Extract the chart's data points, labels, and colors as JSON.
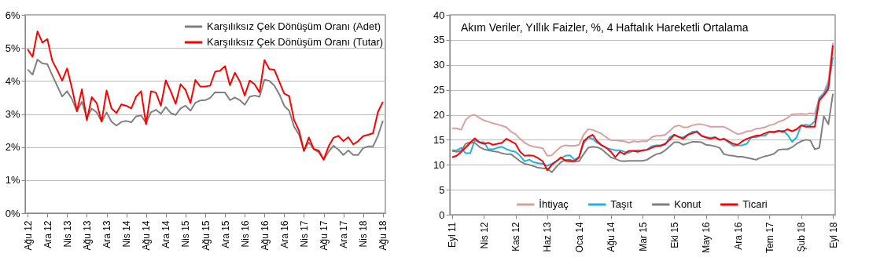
{
  "chart_data": [
    {
      "type": "line",
      "categories": [
        "Ağu 12",
        null,
        null,
        null,
        "Ara 12",
        null,
        null,
        null,
        "Nis 13",
        null,
        null,
        null,
        "Ağu 13",
        null,
        null,
        null,
        "Ara 13",
        null,
        null,
        null,
        "Nis 14",
        null,
        null,
        null,
        "Ağu 14",
        null,
        null,
        null,
        "Ara 14",
        null,
        null,
        null,
        "Nis 15",
        null,
        null,
        null,
        "Ağu 15",
        null,
        null,
        null,
        "Ara 15",
        null,
        null,
        null,
        "Nis 16",
        null,
        null,
        null,
        "Ağu 16",
        null,
        null,
        null,
        "Ara 16",
        null,
        null,
        null,
        "Nis 17",
        null,
        null,
        null,
        "Ağu 17",
        null,
        null,
        null,
        "Ara 17",
        null,
        null,
        null,
        "Nis 18",
        null,
        null,
        null,
        "Ağu 18"
      ],
      "series": [
        {
          "name": "Karşılıksız Çek Dönüşüm Oranı (Adet)",
          "color": "#808080",
          "values": [
            4.35,
            4.19,
            4.65,
            4.53,
            4.51,
            4.17,
            3.85,
            3.53,
            3.69,
            3.45,
            3.08,
            3.37,
            2.89,
            3.16,
            3.05,
            2.77,
            3.05,
            2.77,
            2.65,
            2.76,
            2.79,
            2.75,
            2.93,
            2.96,
            2.73,
            3.05,
            3.13,
            3.01,
            3.21,
            3.03,
            2.97,
            3.17,
            3.25,
            3.1,
            3.34,
            3.41,
            3.42,
            3.49,
            3.66,
            3.65,
            3.65,
            3.42,
            3.5,
            3.42,
            3.28,
            3.52,
            3.56,
            3.52,
            4.04,
            4.0,
            3.86,
            3.6,
            3.25,
            3.1,
            2.62,
            2.38,
            1.9,
            2.14,
            1.94,
            1.84,
            1.62,
            1.86,
            2.04,
            1.92,
            1.76,
            1.9,
            1.76,
            1.76,
            1.97,
            2.02,
            2.02,
            2.34,
            2.8
          ]
        },
        {
          "name": "Karşılıksız Çek Dönüşüm Oranı (Tutar)",
          "color": "#ff0000",
          "values": [
            4.96,
            4.73,
            5.5,
            5.16,
            5.27,
            4.61,
            4.33,
            4.01,
            4.38,
            3.77,
            3.09,
            3.75,
            2.81,
            3.51,
            3.33,
            2.77,
            3.71,
            3.17,
            3.03,
            3.29,
            3.25,
            3.17,
            3.53,
            3.69,
            2.69,
            3.69,
            3.65,
            3.25,
            4.02,
            3.69,
            3.31,
            3.9,
            3.73,
            3.33,
            4.03,
            3.83,
            3.83,
            3.86,
            4.28,
            4.31,
            4.45,
            3.87,
            4.25,
            3.99,
            3.56,
            4.01,
            3.9,
            3.66,
            4.63,
            4.36,
            4.34,
            3.98,
            3.62,
            3.54,
            2.82,
            2.5,
            1.88,
            2.29,
            1.94,
            1.89,
            1.62,
            2.02,
            2.28,
            2.34,
            2.18,
            2.3,
            2.08,
            2.18,
            2.33,
            2.37,
            2.42,
            3.06,
            3.37
          ]
        }
      ],
      "ylim": [
        0,
        6
      ],
      "yticks": [
        {
          "value": 0,
          "label": "0%"
        },
        {
          "value": 1,
          "label": "1%"
        },
        {
          "value": 2,
          "label": "2%"
        },
        {
          "value": 3,
          "label": "3%"
        },
        {
          "value": 4,
          "label": "4%"
        },
        {
          "value": 5,
          "label": "5%"
        },
        {
          "value": 6,
          "label": "6%"
        }
      ],
      "grid": "y",
      "legend": "top right",
      "line_style": "solid"
    },
    {
      "type": "line",
      "title": "Akım Veriler, Yıllık Faizler, %, 4 Haftalık Hareketli Ortalama",
      "categories": [
        "Eyl 11",
        null,
        null,
        null,
        null,
        null,
        null,
        "Nis 12",
        null,
        null,
        null,
        null,
        null,
        null,
        "Kas 12",
        null,
        null,
        null,
        null,
        null,
        null,
        "Haz 13",
        null,
        null,
        null,
        null,
        null,
        null,
        "Oca 14",
        null,
        null,
        null,
        null,
        null,
        null,
        "Ağu 14",
        null,
        null,
        null,
        null,
        null,
        null,
        "Mar 15",
        null,
        null,
        null,
        null,
        null,
        null,
        "Eki 15",
        null,
        null,
        null,
        null,
        null,
        null,
        "May 16",
        null,
        null,
        null,
        null,
        null,
        null,
        "Ara 16",
        null,
        null,
        null,
        null,
        null,
        null,
        "Tem 17",
        null,
        null,
        null,
        null,
        null,
        null,
        "Şub 18",
        null,
        null,
        null,
        null,
        null,
        null,
        "Eyl 18"
      ],
      "series": [
        {
          "name": "İhtiyaç",
          "color": "#d9a09e",
          "values": [
            17.3,
            17.3,
            17.0,
            19.0,
            19.8,
            20.0,
            19.4,
            18.9,
            18.6,
            18.3,
            18.1,
            17.8,
            17.5,
            16.6,
            16.1,
            15.2,
            14.4,
            13.9,
            13.6,
            13.5,
            13.3,
            11.8,
            11.9,
            12.8,
            13.6,
            13.9,
            13.8,
            13.8,
            14.0,
            16.0,
            17.1,
            17.0,
            16.6,
            16.2,
            15.5,
            14.9,
            14.9,
            14.8,
            14.7,
            14.4,
            14.7,
            14.6,
            14.7,
            14.7,
            15.5,
            15.8,
            15.8,
            16.0,
            16.8,
            17.6,
            17.9,
            17.5,
            17.5,
            17.9,
            18.1,
            18.1,
            17.9,
            17.6,
            17.6,
            17.6,
            17.6,
            17.1,
            16.6,
            16.1,
            16.3,
            16.7,
            16.8,
            17.2,
            17.3,
            17.5,
            17.9,
            18.1,
            18.6,
            18.9,
            19.4,
            20.1,
            20.1,
            20.2,
            20.1,
            20.3,
            20.2,
            23.4,
            24.4,
            26.8,
            34.4
          ]
        },
        {
          "name": "Taşıt",
          "color": "#1fb0e8",
          "values": [
            12.9,
            12.9,
            13.4,
            12.3,
            12.3,
            14.9,
            14.5,
            14.5,
            13.1,
            13.1,
            13.4,
            13.6,
            13.1,
            12.8,
            12.6,
            11.8,
            10.7,
            11.0,
            10.5,
            10.3,
            10.2,
            9.8,
            10.2,
            10.7,
            11.3,
            11.8,
            11.9,
            11.0,
            11.5,
            14.2,
            15.5,
            15.2,
            14.4,
            13.9,
            13.4,
            13.1,
            12.9,
            12.9,
            12.6,
            12.4,
            12.8,
            12.9,
            12.8,
            13.0,
            13.7,
            13.9,
            13.9,
            14.0,
            15.5,
            16.0,
            15.5,
            15.5,
            16.0,
            16.6,
            16.7,
            15.8,
            15.5,
            15.4,
            15.5,
            15.0,
            15.1,
            14.5,
            13.8,
            13.9,
            13.9,
            14.2,
            15.5,
            15.5,
            15.8,
            15.8,
            16.6,
            16.4,
            16.7,
            16.8,
            16.0,
            14.6,
            15.5,
            17.9,
            18.0,
            17.9,
            18.7,
            23.4,
            24.2,
            26.0,
            31.5
          ]
        },
        {
          "name": "Konut",
          "color": "#808080",
          "values": [
            12.8,
            12.6,
            12.8,
            14.2,
            14.5,
            14.4,
            13.6,
            13.1,
            12.9,
            12.7,
            12.6,
            12.3,
            12.1,
            12.1,
            11.4,
            10.7,
            10.2,
            10.0,
            9.7,
            9.4,
            9.3,
            9.2,
            8.5,
            9.6,
            10.5,
            11.0,
            11.0,
            10.7,
            10.7,
            12.1,
            13.4,
            13.6,
            13.5,
            13.1,
            12.3,
            11.5,
            11.2,
            10.8,
            10.7,
            10.8,
            10.8,
            10.8,
            10.8,
            11.0,
            11.6,
            12.1,
            12.3,
            12.9,
            13.7,
            14.5,
            14.5,
            14.0,
            14.3,
            14.6,
            14.6,
            14.5,
            14.0,
            13.9,
            13.7,
            13.4,
            12.1,
            11.9,
            11.8,
            11.6,
            11.6,
            11.4,
            11.2,
            11.0,
            11.4,
            11.7,
            11.9,
            12.2,
            13.0,
            13.1,
            13.1,
            13.5,
            14.2,
            14.7,
            15.0,
            14.9,
            13.1,
            13.4,
            19.7,
            18.1,
            24.2
          ]
        },
        {
          "name": "Ticari",
          "color": "#ff0000",
          "values": [
            11.5,
            11.8,
            12.6,
            13.5,
            14.4,
            15.3,
            14.5,
            14.2,
            14.4,
            14.0,
            14.2,
            14.4,
            15.2,
            14.7,
            14.2,
            12.6,
            11.8,
            11.9,
            11.8,
            11.3,
            10.7,
            8.9,
            10.0,
            10.7,
            11.5,
            10.8,
            10.7,
            10.7,
            11.5,
            14.7,
            15.5,
            16.0,
            14.7,
            13.9,
            13.4,
            12.6,
            11.5,
            12.6,
            12.1,
            12.8,
            12.8,
            12.6,
            12.9,
            13.0,
            13.4,
            13.7,
            13.8,
            14.2,
            15.0,
            16.0,
            15.6,
            15.2,
            16.0,
            16.3,
            16.6,
            15.8,
            15.5,
            15.2,
            15.5,
            15.0,
            15.2,
            14.7,
            14.2,
            14.0,
            14.7,
            15.2,
            15.5,
            15.8,
            15.9,
            16.3,
            16.6,
            16.6,
            16.8,
            16.6,
            17.1,
            16.7,
            17.1,
            17.9,
            17.6,
            17.6,
            17.6,
            22.9,
            23.9,
            25.2,
            33.9
          ]
        }
      ],
      "ylim": [
        0,
        40
      ],
      "yticks": [
        0,
        5,
        10,
        15,
        20,
        25,
        30,
        35,
        40
      ],
      "grid": "y",
      "legend": "bottom",
      "line_style": "solid"
    }
  ]
}
